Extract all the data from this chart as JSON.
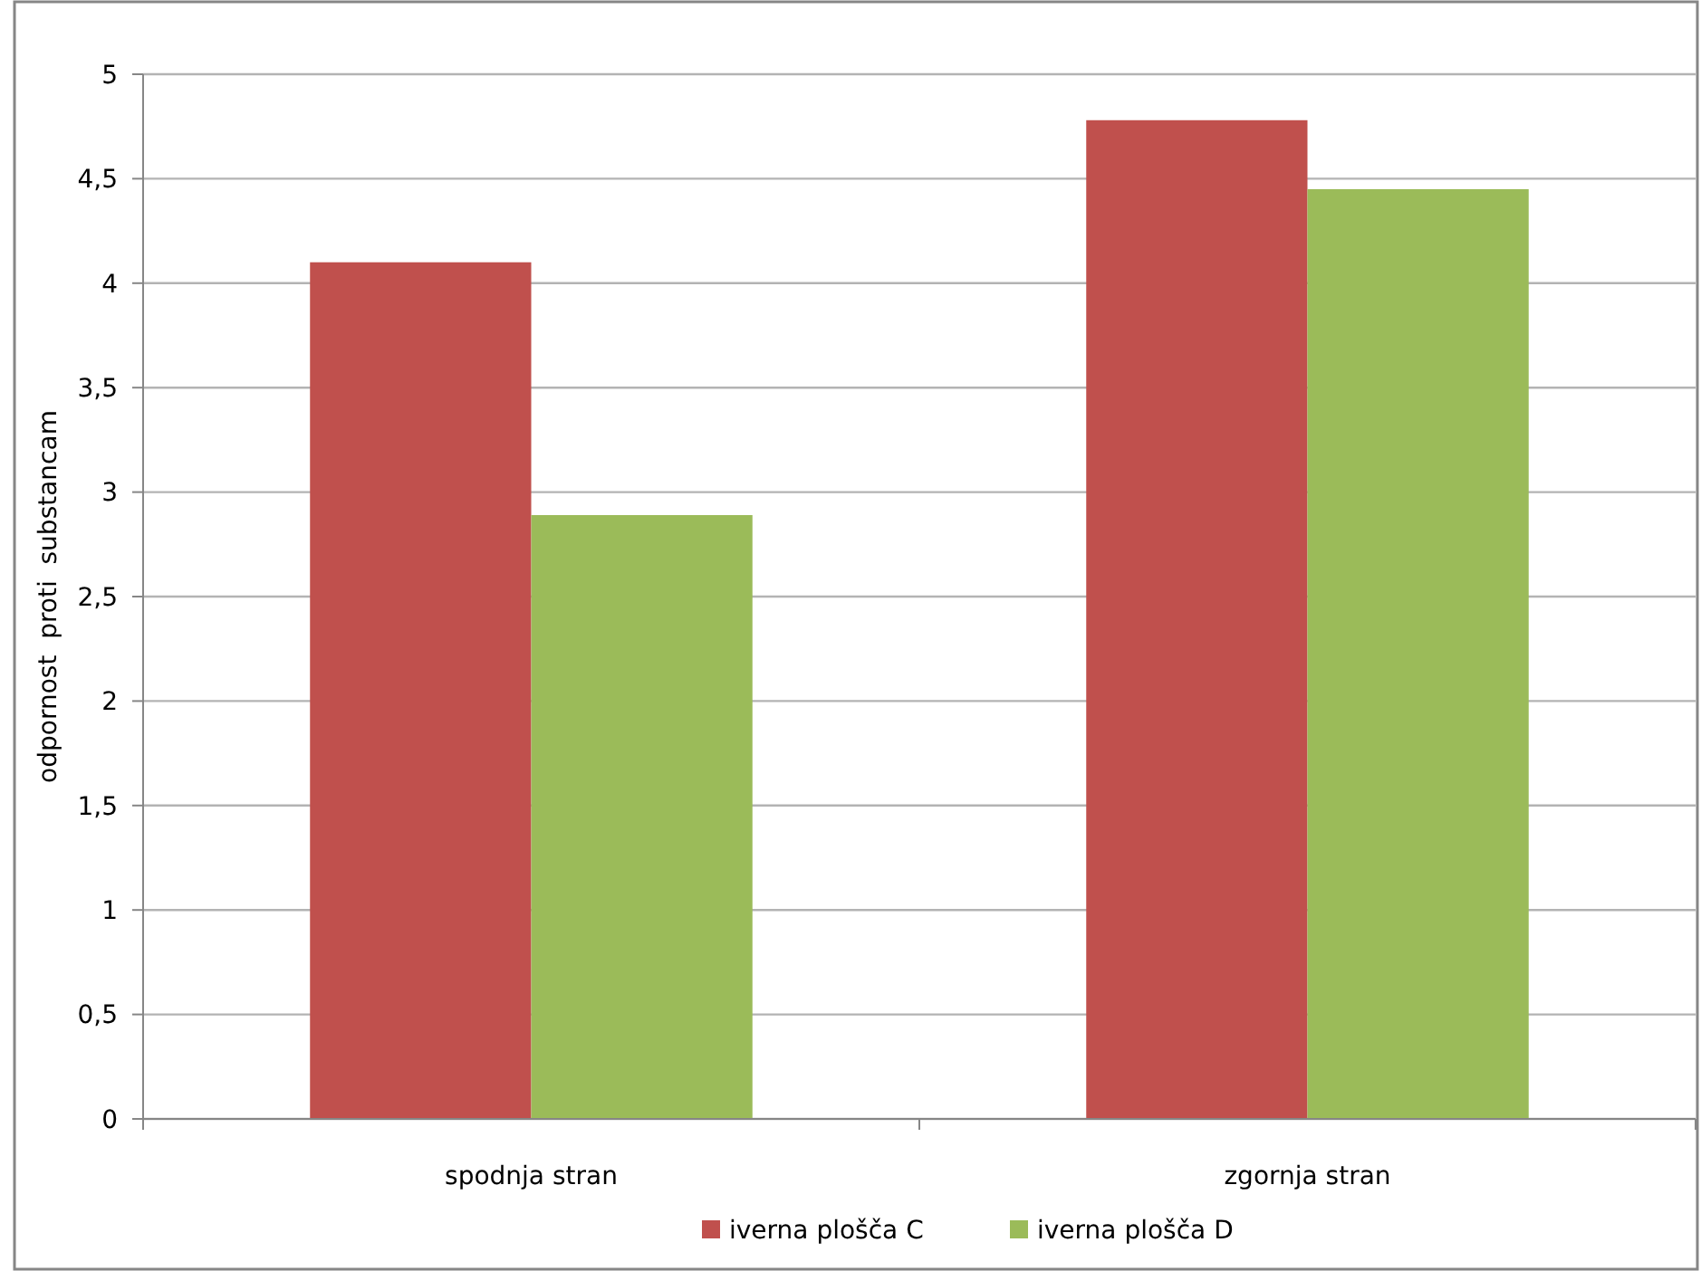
{
  "chart_data": {
    "type": "bar",
    "ylabel": "odpornost  proti  substancam",
    "categories": [
      "spodnja stran",
      "zgornja stran"
    ],
    "series": [
      {
        "name": "iverna plošča C",
        "color": "#c0504d",
        "values": [
          4.1,
          4.78
        ]
      },
      {
        "name": "iverna plošča D",
        "color": "#9bbb59",
        "values": [
          2.89,
          4.45
        ]
      }
    ],
    "ylim": [
      0,
      5
    ],
    "yticks": [
      0,
      {
        "value": 0.5,
        "label": "0,5"
      },
      1,
      {
        "value": 1.5,
        "label": "1,5"
      },
      2,
      {
        "value": 2.5,
        "label": "2,5"
      },
      3,
      {
        "value": 3.5,
        "label": "3,5"
      },
      4,
      {
        "value": 4.5,
        "label": "4,5"
      },
      5
    ],
    "grid": "y",
    "legend": "bottom"
  }
}
